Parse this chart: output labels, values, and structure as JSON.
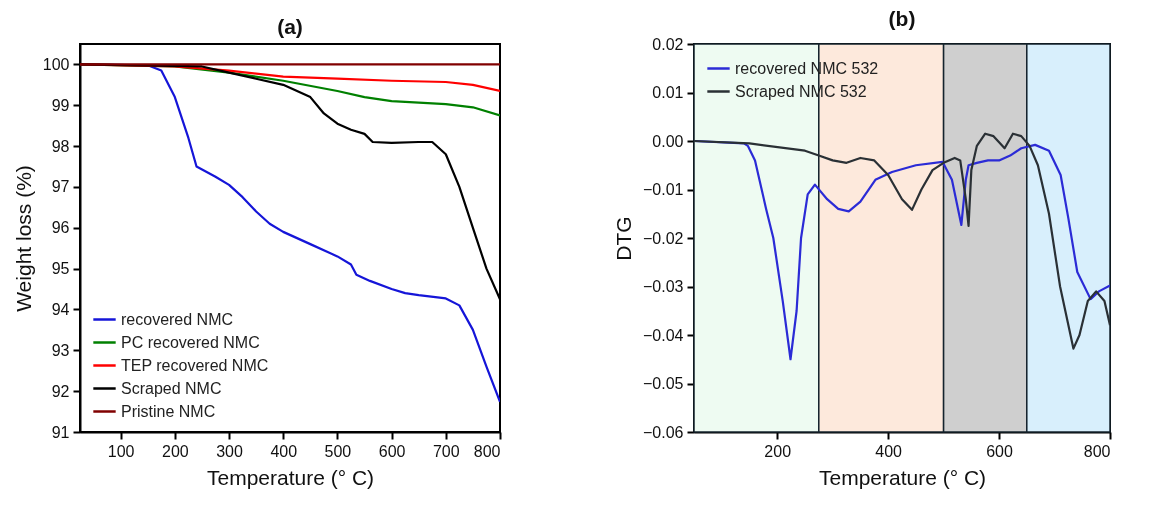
{
  "chart_data": [
    {
      "type": "line",
      "title": "(a)",
      "xlabel": "Temperature (° C)",
      "ylabel": "Weight loss (%)",
      "xlim": [
        25,
        800
      ],
      "ylim": [
        91,
        100.5
      ],
      "xticks": [
        100,
        200,
        300,
        400,
        500,
        600,
        700,
        800
      ],
      "yticks": [
        91,
        92,
        93,
        94,
        95,
        96,
        97,
        98,
        99,
        100
      ],
      "grid": false,
      "legend": "bottom left",
      "series": [
        {
          "name": "recovered NMC",
          "color": "#1515d8",
          "x": [
            25,
            150,
            175,
            200,
            225,
            240,
            275,
            300,
            325,
            350,
            375,
            400,
            450,
            500,
            525,
            535,
            560,
            600,
            625,
            650,
            700,
            725,
            750,
            775,
            800
          ],
          "values": [
            100,
            99.98,
            99.85,
            99.2,
            98.2,
            97.5,
            97.25,
            97.05,
            96.75,
            96.4,
            96.1,
            95.9,
            95.6,
            95.3,
            95.1,
            94.85,
            94.7,
            94.5,
            94.4,
            94.35,
            94.27,
            94.1,
            93.5,
            92.6,
            91.74
          ]
        },
        {
          "name": "PC recovered NMC",
          "color": "#008000",
          "x": [
            25,
            200,
            300,
            400,
            500,
            550,
            600,
            700,
            750,
            800
          ],
          "values": [
            100,
            99.95,
            99.8,
            99.6,
            99.35,
            99.2,
            99.1,
            99.03,
            98.95,
            98.75
          ]
        },
        {
          "name": "TEP recovered NMC",
          "color": "#ff0000",
          "x": [
            25,
            200,
            300,
            400,
            500,
            600,
            700,
            750,
            800
          ],
          "values": [
            100,
            99.95,
            99.85,
            99.7,
            99.65,
            99.6,
            99.57,
            99.5,
            99.35
          ]
        },
        {
          "name": "Scraped NMC",
          "color": "#000000",
          "x": [
            25,
            250,
            300,
            350,
            400,
            450,
            475,
            500,
            525,
            550,
            565,
            600,
            650,
            675,
            700,
            725,
            750,
            775,
            800
          ],
          "values": [
            100,
            99.95,
            99.8,
            99.65,
            99.5,
            99.2,
            98.8,
            98.55,
            98.4,
            98.3,
            98.1,
            98.08,
            98.1,
            98.1,
            97.8,
            97.0,
            96.0,
            95.0,
            94.25
          ]
        },
        {
          "name": "Pristine NMC",
          "color": "#800000",
          "x": [
            25,
            800
          ],
          "values": [
            100,
            100
          ]
        }
      ]
    },
    {
      "type": "line",
      "title": "(b)",
      "xlabel": "Temperature (° C)",
      "ylabel": "DTG",
      "xlim": [
        50,
        800
      ],
      "ylim": [
        -0.06,
        0.02
      ],
      "xticks": [
        200,
        400,
        600,
        800
      ],
      "yticks": [
        -0.06,
        -0.05,
        -0.04,
        -0.03,
        -0.02,
        -0.01,
        {
          "value": 0,
          "label": "0.00"
        },
        0.01,
        0.02
      ],
      "grid": false,
      "legend": "top left",
      "bands": [
        {
          "axis": "x",
          "from": 50,
          "to": 275,
          "color": "#eefbf2"
        },
        {
          "axis": "x",
          "from": 275,
          "to": 500,
          "color": "#fde9dc"
        },
        {
          "axis": "x",
          "from": 500,
          "to": 650,
          "color": "#cfcfcf"
        },
        {
          "axis": "x",
          "from": 650,
          "to": 800,
          "color": "#d8effc"
        }
      ],
      "series": [
        {
          "name": "recovered NMC 532",
          "color": "#2b2bd6",
          "x": [
            50,
            140,
            147,
            160,
            180,
            193,
            210,
            224,
            235,
            243,
            255,
            268,
            290,
            310,
            329,
            350,
            377,
            407,
            450,
            498,
            515,
            532,
            540,
            545,
            560,
            580,
            600,
            620,
            640,
            665,
            690,
            711,
            725,
            741,
            765,
            780,
            800
          ],
          "values": [
            0,
            -0.0005,
            -0.001,
            -0.004,
            -0.014,
            -0.02,
            -0.033,
            -0.045,
            -0.035,
            -0.02,
            -0.011,
            -0.009,
            -0.012,
            -0.014,
            -0.0145,
            -0.0125,
            -0.008,
            -0.0064,
            -0.005,
            -0.0043,
            -0.008,
            -0.0173,
            -0.008,
            -0.005,
            -0.0045,
            -0.004,
            -0.004,
            -0.003,
            -0.0015,
            -0.0008,
            -0.002,
            -0.007,
            -0.016,
            -0.027,
            -0.0326,
            -0.031,
            -0.0298
          ]
        },
        {
          "name": "Scraped NMC 532",
          "color": "#2a3035",
          "x": [
            50,
            150,
            250,
            275,
            300,
            325,
            350,
            375,
            400,
            425,
            443,
            460,
            480,
            500,
            520,
            530,
            540,
            545,
            550,
            560,
            575,
            590,
            610,
            625,
            640,
            655,
            670,
            690,
            710,
            734,
            745,
            760,
            775,
            790,
            800
          ],
          "values": [
            0,
            -0.0005,
            -0.002,
            -0.003,
            -0.004,
            -0.0045,
            -0.0035,
            -0.004,
            -0.007,
            -0.012,
            -0.0142,
            -0.01,
            -0.006,
            -0.0045,
            -0.0035,
            -0.004,
            -0.012,
            -0.0175,
            -0.006,
            -0.001,
            0.0015,
            0.001,
            -0.0015,
            0.0015,
            0.001,
            -0.001,
            -0.005,
            -0.015,
            -0.03,
            -0.0428,
            -0.04,
            -0.033,
            -0.031,
            -0.033,
            -0.038
          ]
        }
      ]
    }
  ]
}
